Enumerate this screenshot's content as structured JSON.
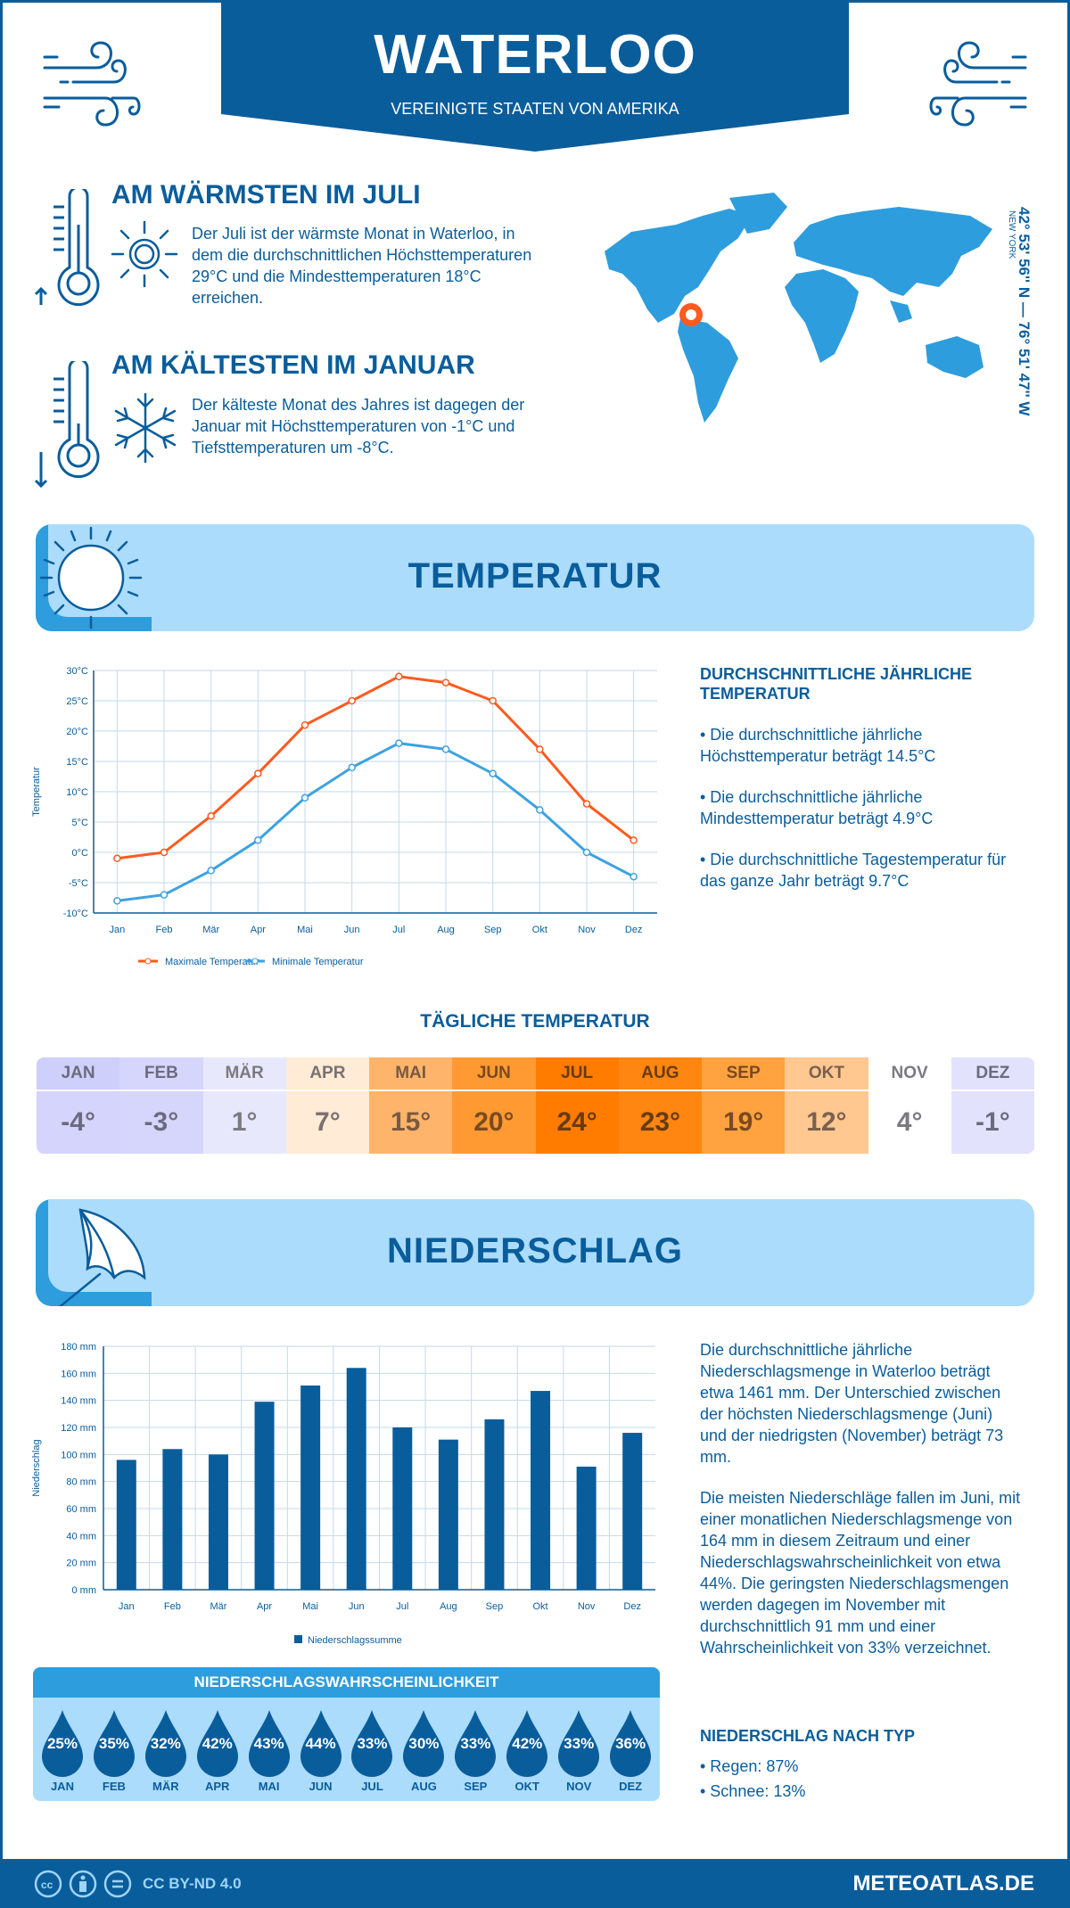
{
  "header": {
    "city": "WATERLOO",
    "country": "VEREINIGTE STAATEN VON AMERIKA"
  },
  "warmest": {
    "title": "AM WÄRMSTEN IM JULI",
    "text": "Der Juli ist der wärmste Monat in Waterloo, in dem die durchschnittlichen Höchsttemperaturen 29°C und die Mindesttemperaturen 18°C erreichen."
  },
  "coldest": {
    "title": "AM KÄLTESTEN IM JANUAR",
    "text": "Der kälteste Monat des Jahres ist dagegen der Januar mit Höchsttemperaturen von -1°C und Tiefsttemperaturen um -8°C."
  },
  "location": {
    "coords": "42° 53' 56'' N — 76° 51' 47'' W",
    "region": "NEW YORK",
    "marker_color": "#ff5a1f"
  },
  "temperature": {
    "section_title": "TEMPERATUR",
    "annual_title": "DURCHSCHNITTLICHE JÄHRLICHE TEMPERATUR",
    "bullets": [
      "• Die durchschnittliche jährliche Höchsttemperatur beträgt 14.5°C",
      "• Die durchschnittliche jährliche Mindesttemperatur beträgt 4.9°C",
      "• Die durchschnittliche Tagestemperatur für das ganze Jahr beträgt 9.7°C"
    ],
    "daily_title": "TÄGLICHE TEMPERATUR",
    "daily": [
      {
        "m": "JAN",
        "v": "-4°",
        "bg": "#cfcffc",
        "bg2": "#d4d4fc",
        "fg": "#6b6b80"
      },
      {
        "m": "FEB",
        "v": "-3°",
        "bg": "#d6d6fc",
        "bg2": "#d6d6fc",
        "fg": "#6b6b80"
      },
      {
        "m": "MÄR",
        "v": "1°",
        "bg": "#e8e8fd",
        "bg2": "#e8e8fd",
        "fg": "#7a7a80"
      },
      {
        "m": "APR",
        "v": "7°",
        "bg": "#ffebd6",
        "bg2": "#ffebd6",
        "fg": "#7a7070"
      },
      {
        "m": "MAI",
        "v": "15°",
        "bg": "#ffb46b",
        "bg2": "#ffb46b",
        "fg": "#7a5a40"
      },
      {
        "m": "JUN",
        "v": "20°",
        "bg": "#ff9a33",
        "bg2": "#ff9a33",
        "fg": "#7a4a20"
      },
      {
        "m": "JUL",
        "v": "24°",
        "bg": "#ff7c00",
        "bg2": "#ff7c00",
        "fg": "#6a3a10"
      },
      {
        "m": "AUG",
        "v": "23°",
        "bg": "#ff8610",
        "bg2": "#ff8610",
        "fg": "#6a3a10"
      },
      {
        "m": "SEP",
        "v": "19°",
        "bg": "#ffa23f",
        "bg2": "#ffa23f",
        "fg": "#7a4a20"
      },
      {
        "m": "OKT",
        "v": "12°",
        "bg": "#ffc891",
        "bg2": "#ffc891",
        "fg": "#7a6050"
      },
      {
        "m": "NOV",
        "v": "4°",
        "bg": "#ffffff",
        "bg2": "#ffffff",
        "fg": "#7a7a80"
      },
      {
        "m": "DEZ",
        "v": "-1°",
        "bg": "#e2e2fd",
        "bg2": "#e2e2fd",
        "fg": "#6b6b80"
      }
    ]
  },
  "precipitation": {
    "section_title": "NIEDERSCHLAG",
    "paragraph1": "Die durchschnittliche jährliche Niederschlagsmenge in Waterloo beträgt etwa 1461 mm. Der Unterschied zwischen der höchsten Niederschlagsmenge (Juni) und der niedrigsten (November) beträgt 73 mm.",
    "paragraph2": "Die meisten Niederschläge fallen im Juni, mit einer monatlichen Niederschlagsmenge von 164 mm in diesem Zeitraum und einer Niederschlagswahrscheinlichkeit von etwa 44%. Die geringsten Niederschlagsmengen werden dagegen im November mit durchschnittlich 91 mm und einer Wahrscheinlichkeit von 33% verzeichnet.",
    "type_title": "NIEDERSCHLAG NACH TYP",
    "types": [
      "• Regen: 87%",
      "• Schnee: 13%"
    ],
    "prob_title": "NIEDERSCHLAGSWAHRSCHEINLICHKEIT",
    "prob": [
      {
        "m": "JAN",
        "v": "25%"
      },
      {
        "m": "FEB",
        "v": "35%"
      },
      {
        "m": "MÄR",
        "v": "32%"
      },
      {
        "m": "APR",
        "v": "42%"
      },
      {
        "m": "MAI",
        "v": "43%"
      },
      {
        "m": "JUN",
        "v": "44%"
      },
      {
        "m": "JUL",
        "v": "33%"
      },
      {
        "m": "AUG",
        "v": "30%"
      },
      {
        "m": "SEP",
        "v": "33%"
      },
      {
        "m": "OKT",
        "v": "42%"
      },
      {
        "m": "NOV",
        "v": "33%"
      },
      {
        "m": "DEZ",
        "v": "36%"
      }
    ]
  },
  "chart_data": [
    {
      "type": "line",
      "categories": [
        "Jan",
        "Feb",
        "Mär",
        "Apr",
        "Mai",
        "Jun",
        "Jul",
        "Aug",
        "Sep",
        "Okt",
        "Nov",
        "Dez"
      ],
      "series": [
        {
          "name": "Maximale Temperatur",
          "color": "#ff5a1f",
          "values": [
            -1,
            0,
            6,
            13,
            21,
            25,
            29,
            28,
            25,
            17,
            8,
            2
          ]
        },
        {
          "name": "Minimale Temperatur",
          "color": "#3da2e0",
          "values": [
            -8,
            -7,
            -3,
            2,
            9,
            14,
            18,
            17,
            13,
            7,
            0,
            -4
          ]
        }
      ],
      "ylabel": "Temperatur",
      "ylim": [
        -10,
        30
      ],
      "yticks": [
        "-10°C",
        "-5°C",
        "0°C",
        "5°C",
        "10°C",
        "15°C",
        "20°C",
        "25°C",
        "30°C"
      ],
      "grid": true,
      "legend": "bottom"
    },
    {
      "type": "bar",
      "categories": [
        "Jan",
        "Feb",
        "Mär",
        "Apr",
        "Mai",
        "Jun",
        "Jul",
        "Aug",
        "Sep",
        "Okt",
        "Nov",
        "Dez"
      ],
      "series": [
        {
          "name": "Niederschlagssumme",
          "color": "#0a5d9b",
          "values": [
            96,
            104,
            100,
            139,
            151,
            164,
            120,
            111,
            126,
            147,
            91,
            116
          ]
        }
      ],
      "ylabel": "Niederschlag",
      "ylim": [
        0,
        180
      ],
      "yticks": [
        "0 mm",
        "20 mm",
        "40 mm",
        "60 mm",
        "80 mm",
        "100 mm",
        "120 mm",
        "140 mm",
        "160 mm",
        "180 mm"
      ],
      "grid": true,
      "legend": "bottom"
    }
  ],
  "footer": {
    "license": "CC BY-ND 4.0",
    "site": "METEOATLAS.DE"
  }
}
